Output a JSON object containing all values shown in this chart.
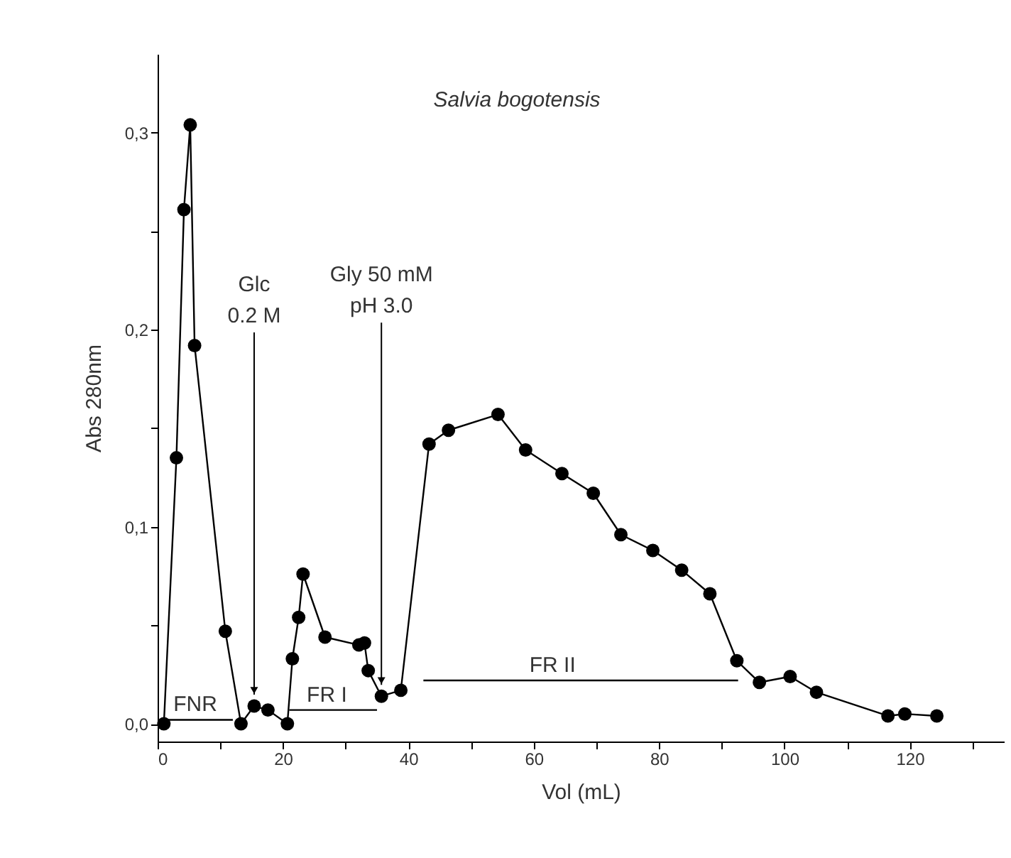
{
  "chart_data": {
    "type": "line",
    "title": "Salvia bogotensis",
    "xlabel": "Vol (mL)",
    "ylabel": "Abs 280nm",
    "xlim": [
      0,
      135
    ],
    "xticks": [
      0,
      {
        "value": 10,
        "label": null
      },
      20,
      {
        "value": 30,
        "label": null
      },
      40,
      {
        "value": 50,
        "label": null
      },
      60,
      {
        "value": 70,
        "label": null
      },
      80,
      {
        "value": 90,
        "label": null
      },
      100,
      {
        "value": 110,
        "label": null
      },
      120,
      {
        "value": 130,
        "label": null
      }
    ],
    "ylim": [
      -0.009,
      0.34
    ],
    "yticks": [
      {
        "value": 0,
        "label": "0,0"
      },
      {
        "value": 0.05,
        "label": null
      },
      {
        "value": 0.1,
        "label": "0,1"
      },
      {
        "value": 0.15,
        "label": null
      },
      {
        "value": 0.2,
        "label": "0,2"
      },
      {
        "value": 0.25,
        "label": null
      },
      {
        "value": 0.3,
        "label": "0,3"
      }
    ],
    "grid": false,
    "series": [
      {
        "color": "#000000",
        "marker": "circle",
        "x": [
          1,
          3,
          4.2,
          5.2,
          5.9,
          10.8,
          13.3,
          15.4,
          17.6,
          20.7,
          21.5,
          22.5,
          23.2,
          26.7,
          32.1,
          33,
          33.6,
          35.7,
          38.8,
          43.3,
          46.4,
          54.3,
          58.7,
          64.5,
          69.5,
          73.9,
          79,
          83.6,
          88.1,
          92.4,
          96,
          100.9,
          105.1,
          116.5,
          119.2,
          124.3
        ],
        "values": [
          0,
          0.135,
          0.261,
          0.304,
          0.192,
          0.047,
          0,
          0.009,
          0.007,
          0,
          0.033,
          0.054,
          0.076,
          0.044,
          0.04,
          0.041,
          0.027,
          0.014,
          0.017,
          0.142,
          0.149,
          0.157,
          0.139,
          0.127,
          0.117,
          0.096,
          0.088,
          0.078,
          0.066,
          0.032,
          0.021,
          0.024,
          0.016,
          0.004,
          0.005,
          0.004
        ]
      },
      {
        "color": "#000000",
        "marker": "none",
        "x": [
          1,
          12
        ],
        "values": [
          0.002,
          0.002
        ]
      },
      {
        "color": "#000000",
        "marker": "none",
        "x": [
          21,
          35
        ],
        "values": [
          0.007,
          0.007
        ]
      },
      {
        "color": "#000000",
        "marker": "none",
        "x": [
          42.4,
          92.6
        ],
        "values": [
          0.022,
          0.022
        ]
      }
    ],
    "annotations": [
      {
        "text": "FNR",
        "x": 6,
        "y": 0.002
      },
      {
        "text": "FR I",
        "x": 27,
        "y": 0.007
      },
      {
        "text": "FR II",
        "x": 63,
        "y": 0.022
      },
      {
        "text": "Glc\n0.2 M",
        "x": 15.4,
        "y": 0.009
      },
      {
        "text": "Gly 50 mM\npH 3.0",
        "x": 35.7,
        "y": 0.014
      }
    ]
  }
}
